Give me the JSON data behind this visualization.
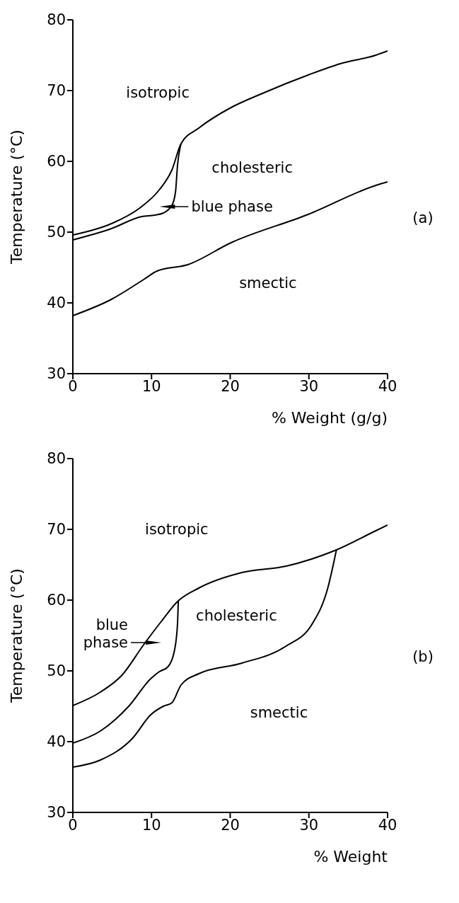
{
  "chart_data": [
    {
      "type": "line",
      "ylabel": "Temperature (°C)",
      "xlabel": "% Weight (g/g)",
      "xlim": [
        0,
        40
      ],
      "xticks": [
        0,
        10,
        20,
        30,
        40
      ],
      "ylim": [
        30,
        80
      ],
      "yticks": [
        30,
        40,
        50,
        60,
        70,
        80
      ],
      "marker": "none",
      "line_style": "solid",
      "series": [
        {
          "color": "#000000",
          "x": [
            0,
            4.9,
            8.5,
            11,
            12.6,
            13.75,
            16,
            20.1,
            24.3,
            29.9,
            34,
            38.5,
            40
          ],
          "values": [
            49.6,
            51.2,
            53.4,
            56,
            58.8,
            62.5,
            64.7,
            67.6,
            69.7,
            72.2,
            73.8,
            75,
            75.6
          ]
        },
        {
          "color": "#000000",
          "x": [
            0,
            4.9,
            8.75,
            10.4,
            11.5,
            12.6,
            13.05,
            13.3,
            13.75
          ],
          "values": [
            48.9,
            50.5,
            52.2,
            52.4,
            52.7,
            53.8,
            55.7,
            59.4,
            62.5
          ]
        },
        {
          "color": "#000000",
          "x": [
            0,
            4.9,
            9,
            10.7,
            14.6,
            20.1,
            29.9,
            38.5,
            40
          ],
          "values": [
            38.2,
            40.5,
            43.3,
            44.5,
            45.4,
            48.5,
            52.5,
            56.6,
            57.1
          ]
        }
      ],
      "annotations": [
        "isotropic",
        "cholesteric",
        "blue phase",
        "smectic",
        "(a)"
      ]
    },
    {
      "type": "line",
      "ylabel": "Temperature (°C)",
      "xlabel": "% Weight",
      "xlim": [
        0,
        40
      ],
      "xticks": [
        0,
        10,
        20,
        30,
        40
      ],
      "ylim": [
        30,
        80
      ],
      "yticks": [
        30,
        40,
        50,
        60,
        70,
        80
      ],
      "marker": "none",
      "line_style": "solid",
      "series": [
        {
          "color": "#000000",
          "x": [
            0,
            3.5,
            6.25,
            9,
            11.25,
            13.3,
            16,
            21.5,
            27.1,
            33.5,
            38.5,
            40
          ],
          "values": [
            45.1,
            47,
            49.4,
            53.7,
            57,
            59.8,
            61.7,
            63.9,
            64.8,
            67.1,
            69.8,
            70.6
          ]
        },
        {
          "color": "#000000",
          "x": [
            0,
            3.5,
            7.1,
            9.9,
            11,
            12.1,
            12.9,
            13.3,
            13.4
          ],
          "values": [
            39.8,
            41.5,
            45,
            48.9,
            49.9,
            50.6,
            52.8,
            56.6,
            59.8
          ]
        },
        {
          "color": "#000000",
          "x": [
            0,
            3.5,
            7.6,
            9.9,
            11.5,
            12.6,
            13.75,
            16,
            21.5,
            27.1,
            30.4,
            32.4,
            33.5
          ],
          "values": [
            36.4,
            37.4,
            40.5,
            43.8,
            45,
            45.5,
            48,
            49.6,
            51.1,
            53.5,
            56.6,
            61.7,
            67.1
          ]
        }
      ],
      "annotations": [
        "isotropic",
        "blue phase",
        "cholesteric",
        "smectic",
        "(b)"
      ]
    }
  ]
}
